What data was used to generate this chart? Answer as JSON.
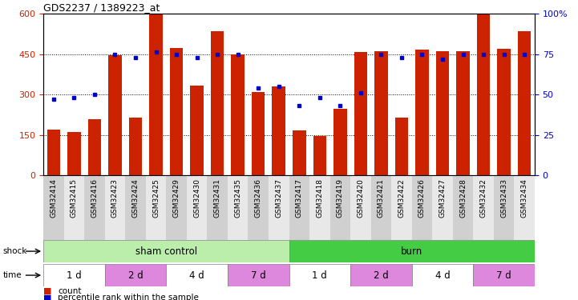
{
  "title": "GDS2237 / 1389223_at",
  "samples": [
    "GSM32414",
    "GSM32415",
    "GSM32416",
    "GSM32423",
    "GSM32424",
    "GSM32425",
    "GSM32429",
    "GSM32430",
    "GSM32431",
    "GSM32435",
    "GSM32436",
    "GSM32437",
    "GSM32417",
    "GSM32418",
    "GSM32419",
    "GSM32420",
    "GSM32421",
    "GSM32422",
    "GSM32426",
    "GSM32427",
    "GSM32428",
    "GSM32432",
    "GSM32433",
    "GSM32434"
  ],
  "counts": [
    170,
    162,
    210,
    447,
    215,
    597,
    472,
    332,
    535,
    450,
    310,
    330,
    167,
    145,
    248,
    457,
    460,
    215,
    465,
    460,
    460,
    597,
    470,
    535
  ],
  "percentiles": [
    47,
    48,
    50,
    75,
    73,
    76,
    75,
    73,
    75,
    75,
    54,
    55,
    43,
    48,
    43,
    51,
    75,
    73,
    75,
    72,
    75,
    75,
    75,
    75
  ],
  "ylim_left": [
    0,
    600
  ],
  "ylim_right": [
    0,
    100
  ],
  "yticks_left": [
    0,
    150,
    300,
    450,
    600
  ],
  "yticks_right": [
    0,
    25,
    50,
    75,
    100
  ],
  "bar_color": "#cc2200",
  "dot_color": "#0000cc",
  "shock_groups": [
    {
      "label": "sham control",
      "start": 0,
      "end": 12,
      "color": "#bbeeaa"
    },
    {
      "label": "burn",
      "start": 12,
      "end": 24,
      "color": "#44cc44"
    }
  ],
  "time_groups": [
    {
      "label": "1 d",
      "start": 0,
      "end": 3,
      "color": "#ffffff"
    },
    {
      "label": "2 d",
      "start": 3,
      "end": 6,
      "color": "#dd88dd"
    },
    {
      "label": "4 d",
      "start": 6,
      "end": 9,
      "color": "#ffffff"
    },
    {
      "label": "7 d",
      "start": 9,
      "end": 12,
      "color": "#dd88dd"
    },
    {
      "label": "1 d",
      "start": 12,
      "end": 15,
      "color": "#ffffff"
    },
    {
      "label": "2 d",
      "start": 15,
      "end": 18,
      "color": "#dd88dd"
    },
    {
      "label": "4 d",
      "start": 18,
      "end": 21,
      "color": "#ffffff"
    },
    {
      "label": "7 d",
      "start": 21,
      "end": 24,
      "color": "#dd88dd"
    }
  ],
  "bg_color": "#ffffff",
  "legend_count_color": "#cc2200",
  "legend_dot_color": "#0000cc"
}
